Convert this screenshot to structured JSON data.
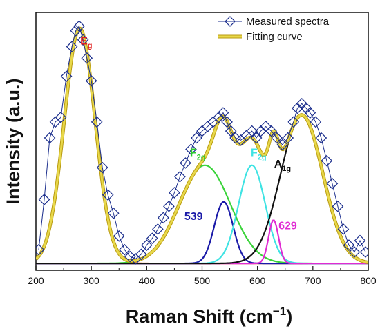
{
  "chart_data": {
    "type": "line",
    "xlabel": "Raman Shift (cm",
    "xlabel_sup": "−1",
    "xlabel_close": ")",
    "ylabel": "Intensity (a.u.)",
    "xlim": [
      200,
      800
    ],
    "ylim": [
      0,
      1
    ],
    "xticks": [
      "200",
      "300",
      "400",
      "500",
      "600",
      "700",
      "800"
    ],
    "legend": [
      {
        "name": "Measured spectra",
        "marker": "diamond",
        "color": "#1a2d8c"
      },
      {
        "name": "Fitting curve",
        "marker": "line",
        "color": "#e8d84a"
      }
    ],
    "measured_series": {
      "name": "Measured spectra",
      "color": "#1a2d8c",
      "x": [
        205,
        215,
        225,
        235,
        245,
        255,
        265,
        272,
        278,
        285,
        292,
        300,
        310,
        320,
        330,
        340,
        350,
        360,
        370,
        380,
        390,
        400,
        410,
        420,
        430,
        440,
        450,
        460,
        470,
        480,
        490,
        500,
        510,
        520,
        530,
        538,
        545,
        552,
        560,
        570,
        580,
        590,
        598,
        606,
        615,
        625,
        635,
        645,
        655,
        665,
        672,
        680,
        688,
        695,
        705,
        715,
        725,
        735,
        745,
        755,
        765,
        775,
        785,
        795
      ],
      "y": [
        0.06,
        0.28,
        0.55,
        0.62,
        0.64,
        0.82,
        0.95,
        1.02,
        1.04,
        0.98,
        0.9,
        0.8,
        0.62,
        0.42,
        0.3,
        0.22,
        0.12,
        0.06,
        0.03,
        0.02,
        0.04,
        0.08,
        0.11,
        0.15,
        0.2,
        0.25,
        0.31,
        0.38,
        0.44,
        0.5,
        0.55,
        0.58,
        0.6,
        0.62,
        0.64,
        0.66,
        0.62,
        0.58,
        0.55,
        0.54,
        0.56,
        0.58,
        0.55,
        0.58,
        0.6,
        0.58,
        0.55,
        0.52,
        0.55,
        0.62,
        0.68,
        0.7,
        0.68,
        0.66,
        0.62,
        0.55,
        0.45,
        0.35,
        0.25,
        0.15,
        0.08,
        0.05,
        0.1,
        0.05
      ]
    },
    "fit_components": [
      {
        "name": "E",
        "sub": "g",
        "type": "gaussian",
        "center": 279,
        "amplitude": 1.03,
        "sigma": 28,
        "color": "#e8561f",
        "label_color": "#e02020",
        "label_x": 280,
        "label_y": 0.96
      },
      {
        "name": "F",
        "sub": "2g",
        "type": "gaussian",
        "center": 505,
        "amplitude": 0.43,
        "sigma": 46,
        "color": "#3ad33a",
        "label_color": "#2dcc2d",
        "label_x": 478,
        "label_y": 0.47
      },
      {
        "name": "539",
        "sub": "",
        "type": "gaussian",
        "center": 539,
        "amplitude": 0.27,
        "sigma": 17,
        "color": "#1a1aa8",
        "label_color": "#1a1aa8",
        "label_x": 468,
        "label_y": 0.19
      },
      {
        "name": "F",
        "sub": "2g",
        "type": "gaussian",
        "center": 590,
        "amplitude": 0.43,
        "sigma": 24,
        "color": "#3fe3e3",
        "label_color": "#3fe3e3",
        "label_x": 588,
        "label_y": 0.47
      },
      {
        "name": "629",
        "sub": "",
        "type": "gaussian",
        "center": 629,
        "amplitude": 0.19,
        "sigma": 9,
        "color": "#e02bd3",
        "label_color": "#e02bd3",
        "label_x": 638,
        "label_y": 0.15
      },
      {
        "name": "A",
        "sub": "1g",
        "type": "gaussian",
        "center": 680,
        "amplitude": 0.65,
        "sigma": 38,
        "color": "#111111",
        "label_color": "#111111",
        "label_x": 630,
        "label_y": 0.42
      }
    ],
    "fitting_curve": {
      "name": "Fitting curve",
      "color": "#e8d84a",
      "stroke": "#b89a10"
    }
  }
}
